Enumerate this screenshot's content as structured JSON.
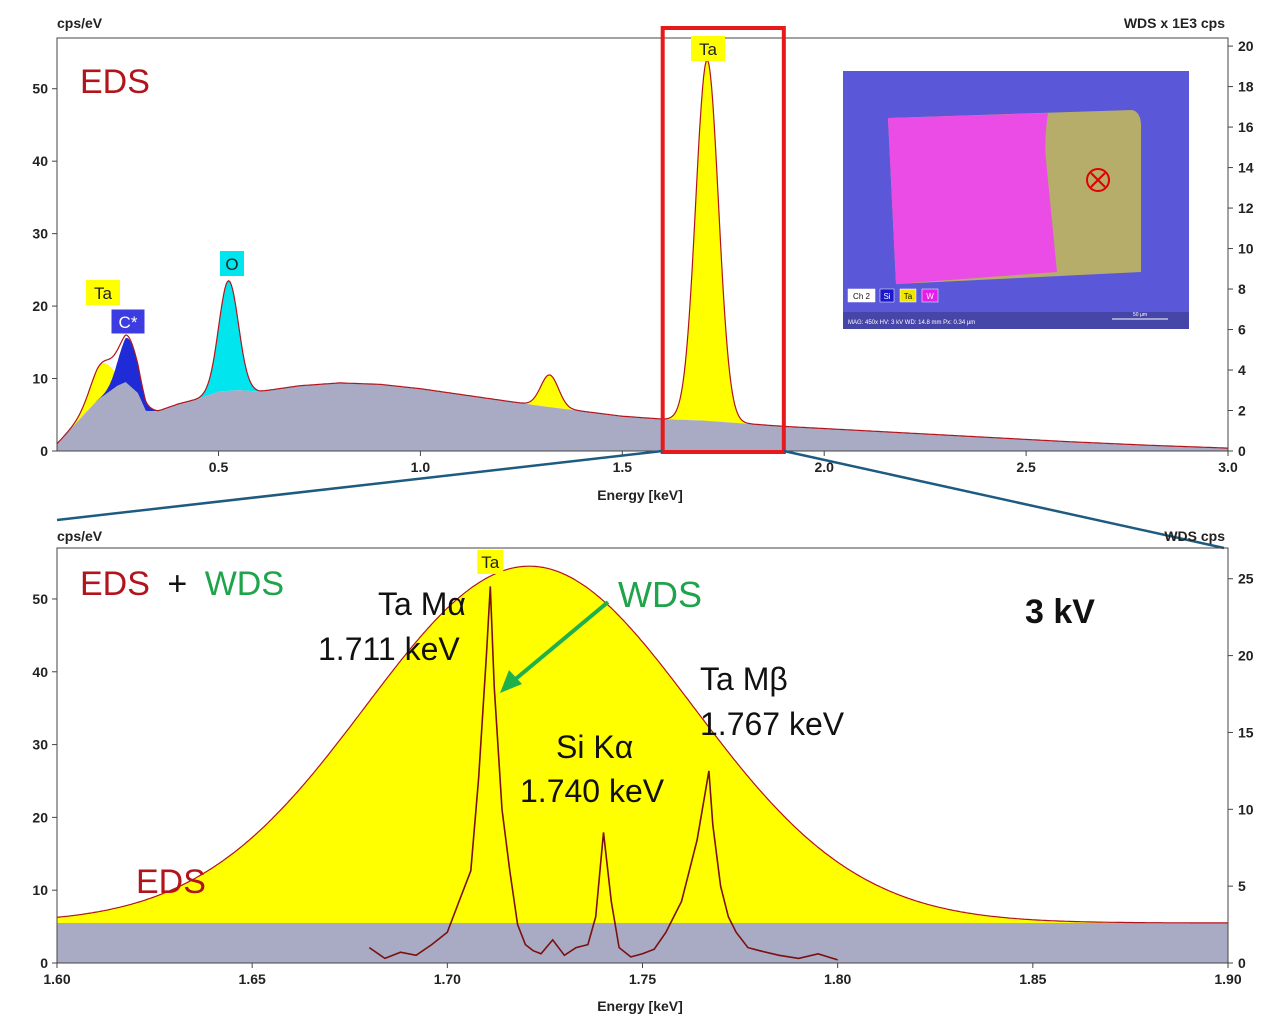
{
  "chart_data": [
    {
      "type": "area",
      "panel": "top",
      "xlabel": "Energy [keV]",
      "ylabel": "cps/eV",
      "y2label": "WDS x 1E3 cps",
      "xlim": [
        0.1,
        3.0
      ],
      "ylim": [
        0,
        57
      ],
      "y2lim": [
        0,
        20.4
      ],
      "xticks": [
        "0.5",
        "1.0",
        "1.5",
        "2.0",
        "2.5",
        "3.0"
      ],
      "xtick_values": [
        0.5,
        1.0,
        1.5,
        2.0,
        2.5,
        3.0
      ],
      "yticks": [
        "0",
        "10",
        "20",
        "30",
        "40",
        "50"
      ],
      "ytick_values": [
        0,
        10,
        20,
        30,
        40,
        50
      ],
      "y2ticks": [
        "0",
        "2",
        "4",
        "6",
        "8",
        "10",
        "12",
        "14",
        "16",
        "18",
        "20"
      ],
      "y2tick_values": [
        0,
        2,
        4,
        6,
        8,
        10,
        12,
        14,
        16,
        18,
        20
      ],
      "title_text": "EDS",
      "background": {
        "x": [
          0.1,
          0.15,
          0.2,
          0.25,
          0.27,
          0.3,
          0.32,
          0.35,
          0.4,
          0.45,
          0.5,
          0.55,
          0.6,
          0.7,
          0.8,
          0.9,
          1.0,
          1.1,
          1.2,
          1.3,
          1.4,
          1.5,
          1.6,
          1.7,
          1.8,
          1.9,
          2.0,
          2.2,
          2.4,
          2.6,
          2.8,
          3.0
        ],
        "y": [
          1,
          4,
          7,
          9,
          9.5,
          8,
          5.5,
          5.5,
          6.5,
          7.2,
          8.2,
          8.4,
          8.2,
          9,
          9.4,
          9.2,
          8.6,
          7.8,
          7,
          6.2,
          5.5,
          4.8,
          4.4,
          4.2,
          3.8,
          3.4,
          3.1,
          2.5,
          1.9,
          1.3,
          0.8,
          0.4
        ]
      },
      "peaks": [
        {
          "label": "Ta",
          "x": 0.21,
          "height": 12,
          "color": "#ffff00",
          "label_bg": "#ffff00",
          "label_color": "#222222"
        },
        {
          "label": "C*",
          "x": 0.277,
          "height": 15.5,
          "color": "#1f2bd6",
          "label_bg": "#3c3ce0",
          "label_color": "#ffffff"
        },
        {
          "label": "O",
          "x": 0.525,
          "height": 23.5,
          "color": "#00e5ee",
          "label_bg": "#00e5ee",
          "label_color": "#222222"
        },
        {
          "label": "",
          "x": 1.32,
          "height": 10.5,
          "color": "#ffff00"
        },
        {
          "label": "Ta",
          "x": 1.71,
          "height": 54,
          "color": "#ffff00",
          "label_bg": "#ffff00",
          "label_color": "#222222"
        }
      ],
      "zoom_box_x": [
        1.6,
        1.9
      ]
    },
    {
      "type": "area",
      "panel": "bottom",
      "xlabel": "Energy [keV]",
      "ylabel": "cps/eV",
      "y2label": "WDS cps",
      "xlim": [
        1.6,
        1.9
      ],
      "ylim": [
        0,
        57
      ],
      "y2lim": [
        0,
        27
      ],
      "xticks": [
        "1.60",
        "1.65",
        "1.70",
        "1.75",
        "1.80",
        "1.85",
        "1.90"
      ],
      "xtick_values": [
        1.6,
        1.65,
        1.7,
        1.75,
        1.8,
        1.85,
        1.9
      ],
      "yticks": [
        "0",
        "10",
        "20",
        "30",
        "40",
        "50"
      ],
      "ytick_values": [
        0,
        10,
        20,
        30,
        40,
        50
      ],
      "y2ticks": [
        "0",
        "5",
        "10",
        "15",
        "20",
        "25"
      ],
      "y2tick_values": [
        0,
        5,
        10,
        15,
        20,
        25
      ],
      "eds_background": 5.5,
      "eds_peak": {
        "x": 1.721,
        "height": 54.5,
        "sigma": 0.042
      },
      "series": [
        {
          "name": "WDS",
          "color": "#7a1010",
          "x": [
            1.68,
            1.684,
            1.688,
            1.692,
            1.696,
            1.7,
            1.703,
            1.706,
            1.708,
            1.71,
            1.711,
            1.712,
            1.714,
            1.716,
            1.718,
            1.72,
            1.722,
            1.724,
            1.727,
            1.73,
            1.733,
            1.736,
            1.738,
            1.74,
            1.742,
            1.744,
            1.747,
            1.75,
            1.753,
            1.756,
            1.758,
            1.76,
            1.762,
            1.764,
            1.766,
            1.767,
            1.768,
            1.77,
            1.772,
            1.774,
            1.777,
            1.78,
            1.785,
            1.79,
            1.795,
            1.8
          ],
          "y": [
            1,
            0.3,
            0.7,
            0.5,
            1.2,
            2,
            4,
            6,
            12,
            20,
            24.5,
            18,
            10,
            6,
            2.5,
            1.2,
            0.8,
            0.6,
            1.5,
            0.5,
            1,
            1.2,
            3,
            8.5,
            4,
            1,
            0.4,
            0.6,
            0.9,
            2,
            3,
            4,
            6,
            8,
            11,
            12.5,
            9,
            5,
            3,
            2,
            1,
            0.8,
            0.5,
            0.3,
            0.6,
            0.2
          ]
        }
      ],
      "title_parts": [
        "EDS",
        "+",
        "WDS"
      ],
      "kv_label": "3 kV",
      "eds_curve_label": "EDS",
      "annotations": [
        {
          "text_lines": [
            "Ta Mα",
            "1.711 keV"
          ]
        },
        {
          "text_lines": [
            "Si Kα",
            "1.740 keV"
          ]
        },
        {
          "text_lines": [
            "Ta Mβ",
            "1.767 keV"
          ]
        },
        {
          "text_lines": [
            "WDS"
          ],
          "arrow": true
        }
      ],
      "peak_label": "Ta"
    }
  ],
  "inset": {
    "legend": [
      "Ch 2",
      "Si",
      "Ta",
      "W"
    ],
    "legend_colors": [
      "#ffffff",
      "#1a1acc",
      "#f2e600",
      "#e81ee8"
    ],
    "info": "MAG: 450x   HV: 3 kV   WD: 14.8 mm   Px: 0.34 µm",
    "scale_label": "50 µm",
    "marker": "crosshair-circle-icon"
  },
  "colors": {
    "background_fill": "#a9abc4",
    "eds_fill": "#ffff00",
    "eds_line": "#b2141c",
    "wds_line": "#7a1010",
    "zoom_box": "#e61a1a",
    "zoom_line": "#1d5b80",
    "eds_title": "#b2141c",
    "wds_title": "#1fa34b"
  }
}
